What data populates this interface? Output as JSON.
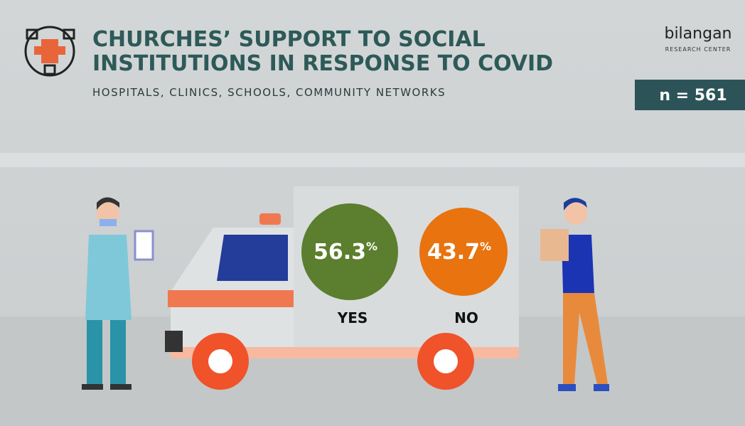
{
  "header": {
    "title": [
      "CHURCHES’ SUPPORT TO SOCIAL",
      "INSTITUTIONS IN RESPONSE TO COVID"
    ],
    "subtitle": "HOSPITALS, CLINICS, SCHOOLS, COMMUNITY NETWORKS",
    "sample": "n = 561"
  },
  "logo": {
    "name": "bilangan",
    "tagline": "RESEARCH CENTER"
  },
  "results": [
    {
      "value": "56.3",
      "unit": "%",
      "label": "YES",
      "color": "#5b7f2e"
    },
    {
      "value": "43.7",
      "unit": "%",
      "label": "NO",
      "color": "#e8730f"
    }
  ]
}
